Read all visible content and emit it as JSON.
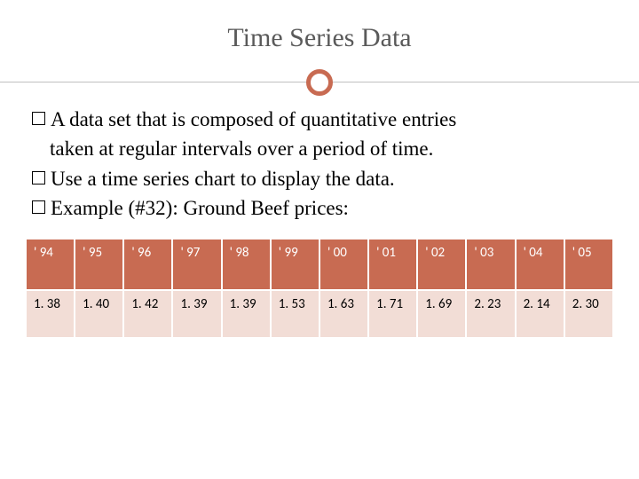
{
  "title": "Time Series Data",
  "bullets": {
    "b1_line1": "A data set that is composed of quantitative entries",
    "b1_line2": "taken at regular intervals over a period of time.",
    "b2": "Use a time series chart to display the data.",
    "b3": "Example (#32):  Ground Beef prices:"
  },
  "table": {
    "header_bg": "#c86b52",
    "header_fg": "#ffffff",
    "row_bg": "#f2ddd6",
    "border_color": "#ffffff",
    "columns": [
      "' 94",
      "' 95",
      "' 96",
      "' 97",
      "' 98",
      "' 99",
      "' 00",
      "' 01",
      "' 02",
      "' 03",
      "' 04",
      "' 05"
    ],
    "values": [
      "1. 38",
      "1. 40",
      "1. 42",
      "1. 39",
      "1. 39",
      "1. 53",
      "1. 63",
      "1. 71",
      "1. 69",
      "2. 23",
      "2. 14",
      "2. 30"
    ]
  },
  "accent_color": "#c86b52",
  "rule_color": "#bfbfbf",
  "title_color": "#5a5a5a"
}
